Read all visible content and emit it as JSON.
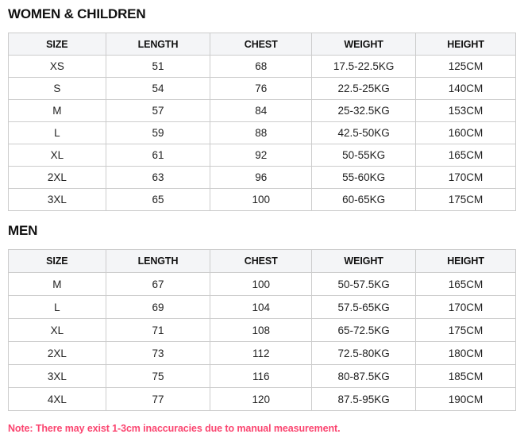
{
  "sections": [
    {
      "title": "WOMEN & CHILDREN",
      "columns": [
        "SIZE",
        "LENGTH",
        "CHEST",
        "WEIGHT",
        "HEIGHT"
      ],
      "rows": [
        [
          "XS",
          "51",
          "68",
          "17.5-22.5KG",
          "125CM"
        ],
        [
          "S",
          "54",
          "76",
          "22.5-25KG",
          "140CM"
        ],
        [
          "M",
          "57",
          "84",
          "25-32.5KG",
          "153CM"
        ],
        [
          "L",
          "59",
          "88",
          "42.5-50KG",
          "160CM"
        ],
        [
          "XL",
          "61",
          "92",
          "50-55KG",
          "165CM"
        ],
        [
          "2XL",
          "63",
          "96",
          "55-60KG",
          "170CM"
        ],
        [
          "3XL",
          "65",
          "100",
          "60-65KG",
          "175CM"
        ]
      ]
    },
    {
      "title": "MEN",
      "columns": [
        "SIZE",
        "LENGTH",
        "CHEST",
        "WEIGHT",
        "HEIGHT"
      ],
      "rows": [
        [
          "M",
          "67",
          "100",
          "50-57.5KG",
          "165CM"
        ],
        [
          "L",
          "69",
          "104",
          "57.5-65KG",
          "170CM"
        ],
        [
          "XL",
          "71",
          "108",
          "65-72.5KG",
          "175CM"
        ],
        [
          "2XL",
          "73",
          "112",
          "72.5-80KG",
          "180CM"
        ],
        [
          "3XL",
          "75",
          "116",
          "80-87.5KG",
          "185CM"
        ],
        [
          "4XL",
          "77",
          "120",
          "87.5-95KG",
          "190CM"
        ]
      ]
    }
  ],
  "note": "Note: There may exist 1-3cm inaccuracies due to manual measurement.",
  "colors": {
    "note_text": "#fb4570",
    "table_border": "#cccccc",
    "header_background": "#f4f5f7",
    "body_text": "#222222"
  }
}
